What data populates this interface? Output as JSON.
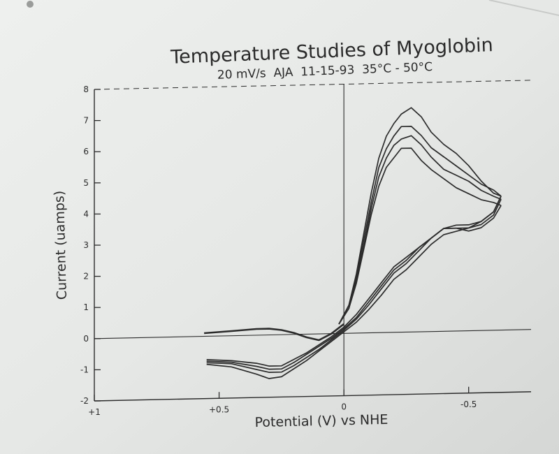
{
  "chart_data": {
    "type": "line",
    "title": "Temperature Studies of Myoglobin",
    "subtitle": "20 mV/s  AJA  11-15-93  35°C - 50°C",
    "xlabel": "Potential (V) vs NHE",
    "ylabel": "Current (uamps)",
    "xlim": [
      1,
      -0.75
    ],
    "ylim": [
      -2,
      8
    ],
    "x_ticks": [
      1,
      0.5,
      0,
      -0.5
    ],
    "x_tick_labels": [
      "+1",
      "+0.5",
      "0",
      "-0.5"
    ],
    "y_ticks": [
      -2,
      -1,
      0,
      1,
      2,
      3,
      4,
      5,
      6,
      7,
      8
    ],
    "y_tick_labels": [
      "-2",
      "-1",
      "0",
      "1",
      "2",
      "3",
      "4",
      "5",
      "6",
      "7",
      "8"
    ],
    "grid": false,
    "series": [
      {
        "forward": [
          [
            0.02,
            0.3
          ],
          [
            -0.02,
            0.8
          ],
          [
            -0.05,
            1.6
          ],
          [
            -0.08,
            2.7
          ],
          [
            -0.11,
            3.8
          ],
          [
            -0.14,
            4.7
          ],
          [
            -0.17,
            5.3
          ],
          [
            -0.2,
            5.6
          ],
          [
            -0.23,
            5.9
          ],
          [
            -0.27,
            5.9
          ],
          [
            -0.31,
            5.5
          ],
          [
            -0.35,
            5.2
          ],
          [
            -0.4,
            4.9
          ],
          [
            -0.45,
            4.6
          ],
          [
            -0.5,
            4.4
          ],
          [
            -0.55,
            4.2
          ],
          [
            -0.6,
            4.1
          ],
          [
            -0.63,
            4.0
          ]
        ],
        "reverse": [
          [
            -0.63,
            4.0
          ],
          [
            -0.6,
            3.6
          ],
          [
            -0.55,
            3.3
          ],
          [
            -0.5,
            3.2
          ],
          [
            -0.45,
            3.3
          ],
          [
            -0.4,
            3.3
          ],
          [
            -0.35,
            3.0
          ],
          [
            -0.3,
            2.7
          ],
          [
            -0.25,
            2.4
          ],
          [
            -0.2,
            2.1
          ],
          [
            -0.15,
            1.6
          ],
          [
            -0.1,
            1.1
          ],
          [
            -0.05,
            0.6
          ],
          [
            0.0,
            0.2
          ],
          [
            0.05,
            -0.1
          ],
          [
            0.1,
            -0.35
          ],
          [
            0.15,
            -0.6
          ],
          [
            0.2,
            -0.8
          ],
          [
            0.25,
            -1.0
          ],
          [
            0.3,
            -1.0
          ],
          [
            0.35,
            -0.9
          ],
          [
            0.45,
            -0.8
          ],
          [
            0.55,
            -0.75
          ]
        ]
      },
      {
        "forward": [
          [
            0.02,
            0.3
          ],
          [
            -0.02,
            0.8
          ],
          [
            -0.05,
            1.7
          ],
          [
            -0.08,
            2.8
          ],
          [
            -0.11,
            4.0
          ],
          [
            -0.14,
            5.0
          ],
          [
            -0.17,
            5.6
          ],
          [
            -0.2,
            6.0
          ],
          [
            -0.23,
            6.2
          ],
          [
            -0.27,
            6.3
          ],
          [
            -0.31,
            6.0
          ],
          [
            -0.35,
            5.6
          ],
          [
            -0.4,
            5.2
          ],
          [
            -0.45,
            5.0
          ],
          [
            -0.5,
            4.8
          ],
          [
            -0.55,
            4.5
          ],
          [
            -0.6,
            4.3
          ],
          [
            -0.63,
            4.2
          ]
        ],
        "reverse": [
          [
            -0.63,
            4.2
          ],
          [
            -0.6,
            3.7
          ],
          [
            -0.55,
            3.4
          ],
          [
            -0.5,
            3.3
          ],
          [
            -0.45,
            3.3
          ],
          [
            -0.4,
            3.3
          ],
          [
            -0.35,
            3.0
          ],
          [
            -0.3,
            2.7
          ],
          [
            -0.25,
            2.3
          ],
          [
            -0.2,
            2.0
          ],
          [
            -0.15,
            1.5
          ],
          [
            -0.1,
            1.0
          ],
          [
            -0.05,
            0.5
          ],
          [
            0.0,
            0.15
          ],
          [
            0.05,
            -0.15
          ],
          [
            0.1,
            -0.4
          ],
          [
            0.15,
            -0.65
          ],
          [
            0.2,
            -0.9
          ],
          [
            0.25,
            -1.1
          ],
          [
            0.3,
            -1.1
          ],
          [
            0.35,
            -1.0
          ],
          [
            0.45,
            -0.85
          ],
          [
            0.55,
            -0.8
          ]
        ]
      },
      {
        "forward": [
          [
            0.02,
            0.3
          ],
          [
            -0.02,
            0.9
          ],
          [
            -0.05,
            1.8
          ],
          [
            -0.08,
            3.0
          ],
          [
            -0.11,
            4.2
          ],
          [
            -0.14,
            5.3
          ],
          [
            -0.17,
            5.9
          ],
          [
            -0.2,
            6.3
          ],
          [
            -0.23,
            6.6
          ],
          [
            -0.27,
            6.6
          ],
          [
            -0.31,
            6.3
          ],
          [
            -0.35,
            5.9
          ],
          [
            -0.4,
            5.6
          ],
          [
            -0.45,
            5.3
          ],
          [
            -0.5,
            5.0
          ],
          [
            -0.55,
            4.7
          ],
          [
            -0.6,
            4.5
          ],
          [
            -0.63,
            4.3
          ]
        ],
        "reverse": [
          [
            -0.63,
            4.3
          ],
          [
            -0.6,
            3.8
          ],
          [
            -0.55,
            3.5
          ],
          [
            -0.5,
            3.4
          ],
          [
            -0.45,
            3.4
          ],
          [
            -0.4,
            3.3
          ],
          [
            -0.35,
            3.0
          ],
          [
            -0.3,
            2.6
          ],
          [
            -0.25,
            2.2
          ],
          [
            -0.2,
            1.9
          ],
          [
            -0.15,
            1.4
          ],
          [
            -0.1,
            0.9
          ],
          [
            -0.05,
            0.45
          ],
          [
            0.0,
            0.1
          ],
          [
            0.05,
            -0.2
          ],
          [
            0.1,
            -0.5
          ],
          [
            0.15,
            -0.75
          ],
          [
            0.2,
            -1.0
          ],
          [
            0.25,
            -1.2
          ],
          [
            0.3,
            -1.2
          ],
          [
            0.35,
            -1.1
          ],
          [
            0.45,
            -0.9
          ],
          [
            0.55,
            -0.85
          ]
        ]
      },
      {
        "forward": [
          [
            0.02,
            0.3
          ],
          [
            -0.02,
            0.9
          ],
          [
            -0.05,
            1.9
          ],
          [
            -0.08,
            3.2
          ],
          [
            -0.11,
            4.5
          ],
          [
            -0.14,
            5.6
          ],
          [
            -0.17,
            6.3
          ],
          [
            -0.2,
            6.7
          ],
          [
            -0.23,
            7.0
          ],
          [
            -0.27,
            7.2
          ],
          [
            -0.31,
            6.9
          ],
          [
            -0.35,
            6.4
          ],
          [
            -0.4,
            6.0
          ],
          [
            -0.45,
            5.7
          ],
          [
            -0.5,
            5.3
          ],
          [
            -0.55,
            4.8
          ],
          [
            -0.6,
            4.4
          ],
          [
            -0.63,
            4.3
          ]
        ],
        "reverse": [
          [
            -0.63,
            4.3
          ],
          [
            -0.6,
            3.8
          ],
          [
            -0.55,
            3.5
          ],
          [
            -0.5,
            3.3
          ],
          [
            -0.45,
            3.2
          ],
          [
            -0.4,
            3.1
          ],
          [
            -0.35,
            2.8
          ],
          [
            -0.3,
            2.4
          ],
          [
            -0.25,
            2.0
          ],
          [
            -0.2,
            1.7
          ],
          [
            -0.15,
            1.2
          ],
          [
            -0.1,
            0.75
          ],
          [
            -0.05,
            0.35
          ],
          [
            0.0,
            0.05
          ],
          [
            0.05,
            -0.25
          ],
          [
            0.1,
            -0.55
          ],
          [
            0.15,
            -0.85
          ],
          [
            0.2,
            -1.1
          ],
          [
            0.25,
            -1.35
          ],
          [
            0.3,
            -1.4
          ],
          [
            0.35,
            -1.25
          ],
          [
            0.45,
            -1.0
          ],
          [
            0.55,
            -0.9
          ]
        ]
      }
    ],
    "baseline_segment": [
      [
        0.56,
        0.1
      ],
      [
        0.45,
        0.15
      ],
      [
        0.35,
        0.2
      ],
      [
        0.3,
        0.2
      ],
      [
        0.25,
        0.15
      ],
      [
        0.2,
        0.05
      ],
      [
        0.15,
        -0.1
      ],
      [
        0.1,
        -0.2
      ],
      [
        0.05,
        0.0
      ],
      [
        0.0,
        0.3
      ]
    ]
  }
}
